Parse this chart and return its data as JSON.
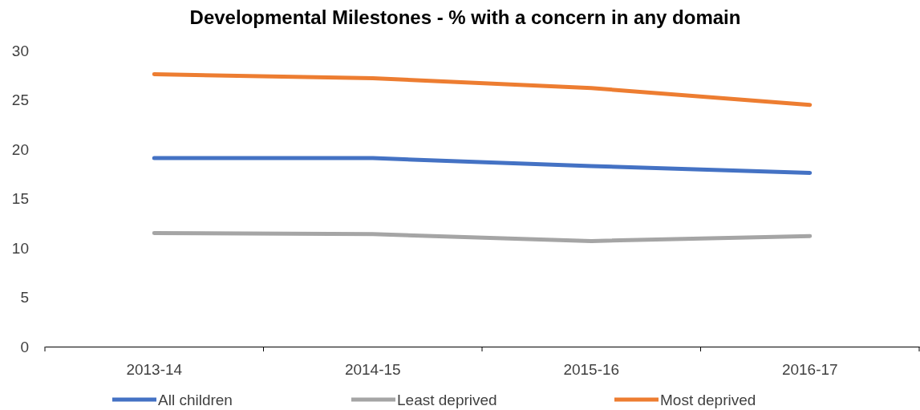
{
  "chart_data": {
    "type": "line",
    "title": "Developmental Milestones - % with a concern in any domain",
    "categories": [
      "2013-14",
      "2014-15",
      "2015-16",
      "2016-17"
    ],
    "series": [
      {
        "name": "All children",
        "color": "#4472c4",
        "values": [
          19.1,
          19.1,
          18.3,
          17.6
        ]
      },
      {
        "name": "Least deprived",
        "color": "#a5a5a5",
        "values": [
          11.5,
          11.4,
          10.7,
          11.2
        ]
      },
      {
        "name": "Most deprived",
        "color": "#ed7d31",
        "values": [
          27.6,
          27.2,
          26.2,
          24.5
        ]
      }
    ],
    "ylim": [
      0,
      30
    ],
    "yticks": [
      0,
      5,
      10,
      15,
      20,
      25,
      30
    ],
    "grid": false,
    "legend": "bottom",
    "marker": "none",
    "line_style": "solid"
  }
}
